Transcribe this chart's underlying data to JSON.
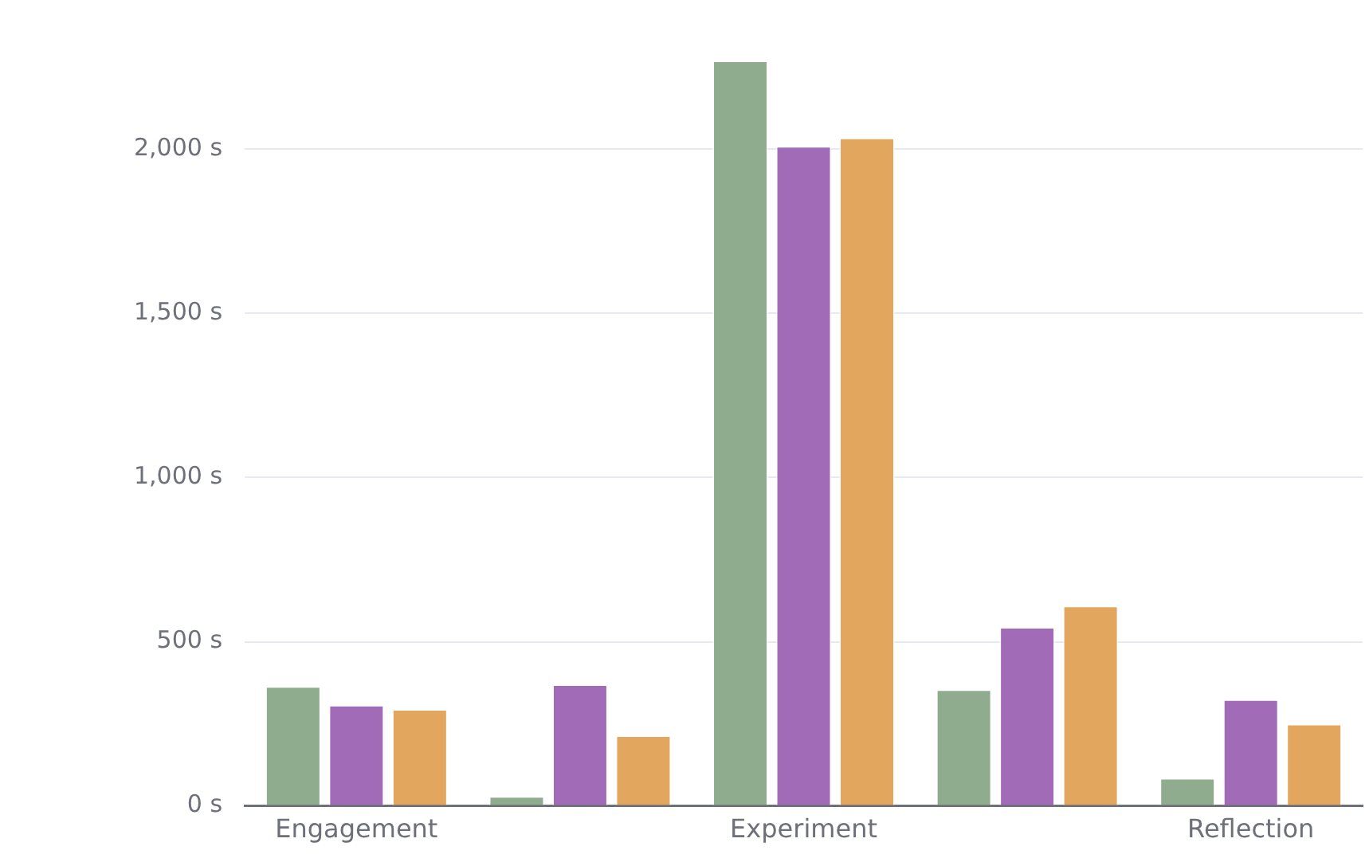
{
  "chart_data": {
    "type": "bar",
    "categories": [
      "Engagement",
      null,
      "Experiment",
      null,
      "Reflection"
    ],
    "series": [
      {
        "color": "#8fac8f",
        "values": [
          365,
          30,
          2270,
          355,
          85
        ]
      },
      {
        "color": "#a26bb7",
        "values": [
          308,
          370,
          2010,
          545,
          325
        ]
      },
      {
        "color": "#e2a65e",
        "values": [
          295,
          215,
          2035,
          610,
          250
        ]
      }
    ],
    "yticks": [
      {
        "value": 0,
        "label": "0 s"
      },
      {
        "value": 500,
        "label": "500 s"
      },
      {
        "value": 1000,
        "label": "1,000 s"
      },
      {
        "value": 1500,
        "label": "1,500 s"
      },
      {
        "value": 2000,
        "label": "2,000 s"
      }
    ],
    "ylim": [
      0,
      2270
    ],
    "grid": "y",
    "legend": false
  }
}
